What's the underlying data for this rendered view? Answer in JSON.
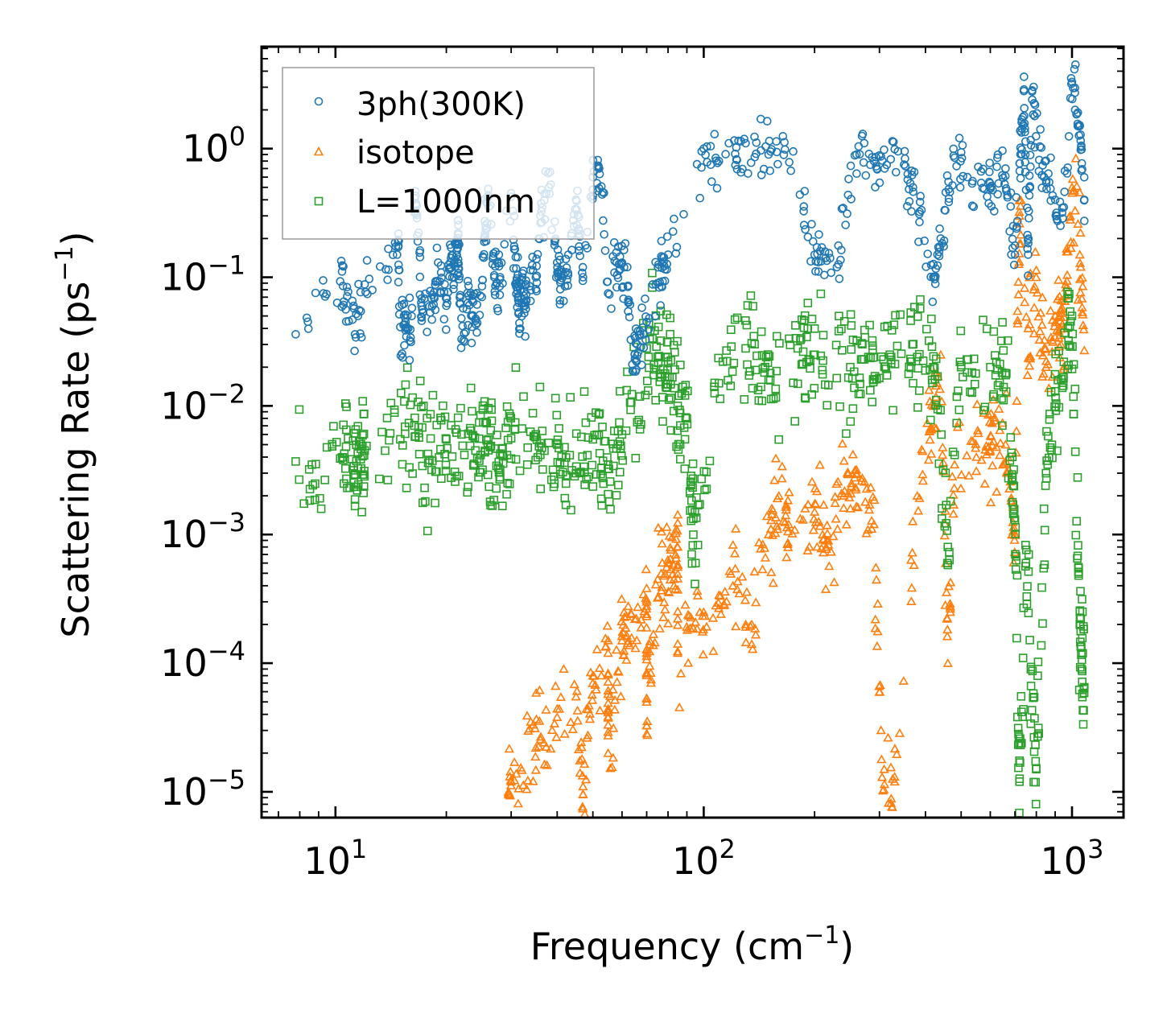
{
  "chart_data": {
    "type": "scatter",
    "title": "",
    "xlabel": "Frequency (cm",
    "xlabel_sup": "−1",
    "xlabel_close": ")",
    "ylabel": "Scattering Rate (ps",
    "ylabel_sup": "−1",
    "ylabel_close": ")",
    "xscale": "log",
    "yscale": "log",
    "xlim": [
      6.3,
      1380
    ],
    "ylim": [
      6.3e-06,
      6.2
    ],
    "legend_position": "top-left",
    "x_ticks": [
      {
        "base": "10",
        "exp": "1",
        "value": 10
      },
      {
        "base": "10",
        "exp": "2",
        "value": 100
      },
      {
        "base": "10",
        "exp": "3",
        "value": 1000
      }
    ],
    "y_ticks": [
      {
        "base": "10",
        "exp": "0",
        "value": 1
      },
      {
        "base": "10",
        "exp": "−1",
        "value": 0.1
      },
      {
        "base": "10",
        "exp": "−2",
        "value": 0.01
      },
      {
        "base": "10",
        "exp": "−3",
        "value": 0.001
      },
      {
        "base": "10",
        "exp": "−4",
        "value": 0.0001
      },
      {
        "base": "10",
        "exp": "−5",
        "value": 1e-05
      }
    ],
    "series": [
      {
        "name": "3ph(300K)",
        "color": "#1f77b4",
        "marker": "circle",
        "points": [
          [
            7.8,
            0.036
          ],
          [
            10.3,
            0.093
          ],
          [
            11.3,
            0.036
          ],
          [
            12.0,
            0.088
          ],
          [
            14.8,
            0.19
          ],
          [
            15.0,
            0.041
          ],
          [
            15.5,
            0.045
          ],
          [
            16.0,
            0.034
          ],
          [
            16.5,
            0.43
          ],
          [
            17.2,
            0.056
          ],
          [
            18.5,
            0.07
          ],
          [
            19.0,
            0.13
          ],
          [
            20.0,
            0.06
          ],
          [
            20.5,
            0.13
          ],
          [
            21.0,
            0.1
          ],
          [
            21.5,
            0.19
          ],
          [
            22.0,
            0.033
          ],
          [
            23.0,
            0.072
          ],
          [
            24.0,
            0.046
          ],
          [
            25.0,
            0.085
          ],
          [
            25.5,
            0.22
          ],
          [
            26.0,
            0.42
          ],
          [
            27.0,
            0.1
          ],
          [
            28.0,
            0.1
          ],
          [
            30.0,
            0.45
          ],
          [
            31.0,
            0.09
          ],
          [
            32.0,
            0.068
          ],
          [
            33.0,
            0.066
          ],
          [
            35.0,
            0.1
          ],
          [
            36.0,
            0.3
          ],
          [
            38.0,
            0.5
          ],
          [
            40.0,
            0.13
          ],
          [
            42.0,
            0.085
          ],
          [
            45.0,
            0.4
          ],
          [
            47.0,
            0.1
          ],
          [
            50.0,
            0.6
          ],
          [
            52.0,
            0.7
          ],
          [
            55.0,
            0.075
          ],
          [
            58.0,
            0.13
          ],
          [
            62.0,
            0.12
          ],
          [
            64.0,
            0.021
          ],
          [
            66.0,
            0.03
          ],
          [
            70.0,
            0.045
          ],
          [
            75.0,
            0.09
          ],
          [
            80.0,
            0.15
          ],
          [
            100.0,
            1.0
          ],
          [
            110.0,
            0.8
          ],
          [
            130.0,
            1.1
          ],
          [
            150.0,
            0.9
          ],
          [
            175.0,
            0.95
          ],
          [
            200.0,
            0.15
          ],
          [
            230.0,
            0.12
          ],
          [
            260.0,
            0.9
          ],
          [
            290.0,
            0.8
          ],
          [
            310.0,
            0.7
          ],
          [
            350.0,
            0.75
          ],
          [
            370.0,
            0.5
          ],
          [
            420.0,
            0.1
          ],
          [
            440.0,
            0.2
          ],
          [
            480.0,
            0.85
          ],
          [
            520.0,
            0.6
          ],
          [
            600.0,
            0.5
          ],
          [
            660.0,
            0.7
          ],
          [
            700.0,
            0.15
          ],
          [
            730.0,
            1.6
          ],
          [
            740.0,
            2.8
          ],
          [
            760.0,
            0.15
          ],
          [
            780.0,
            2.4
          ],
          [
            840.0,
            0.6
          ],
          [
            900.0,
            0.4
          ],
          [
            950.0,
            0.35
          ],
          [
            1000.0,
            3.3
          ],
          [
            1050.0,
            1.5
          ],
          [
            1080.0,
            0.4
          ]
        ]
      },
      {
        "name": "isotope",
        "color": "#ff7f0e",
        "marker": "triangle",
        "points": [
          [
            29.5,
            1e-05
          ],
          [
            30.0,
            1.2e-05
          ],
          [
            35.0,
            2.2e-05
          ],
          [
            40.0,
            3.8e-05
          ],
          [
            45.0,
            5.5e-05
          ],
          [
            50.0,
            8e-05
          ],
          [
            55.0,
            0.00012
          ],
          [
            60.0,
            0.00015
          ],
          [
            65.0,
            0.00022
          ],
          [
            70.0,
            0.0003
          ],
          [
            75.0,
            0.00045
          ],
          [
            80.0,
            0.0006
          ],
          [
            85.0,
            0.0008
          ],
          [
            47.0,
            1.1e-05
          ],
          [
            55.0,
            2e-05
          ],
          [
            70.0,
            5e-05
          ],
          [
            85.0,
            0.00012
          ],
          [
            100.0,
            0.00025
          ],
          [
            120.0,
            0.0004
          ],
          [
            135.0,
            0.0002
          ],
          [
            150.0,
            0.001
          ],
          [
            160.0,
            0.002
          ],
          [
            170.0,
            0.0012
          ],
          [
            200.0,
            0.0015
          ],
          [
            215.0,
            0.0008
          ],
          [
            240.0,
            0.002
          ],
          [
            260.0,
            0.003
          ],
          [
            290.0,
            0.0012
          ],
          [
            305.0,
            1.3e-05
          ],
          [
            330.0,
            1.2e-05
          ],
          [
            380.0,
            0.002
          ],
          [
            420.0,
            0.01
          ],
          [
            440.0,
            0.025
          ],
          [
            460.0,
            0.0001
          ],
          [
            480.0,
            0.0035
          ],
          [
            550.0,
            0.004
          ],
          [
            600.0,
            0.0045
          ],
          [
            660.0,
            0.005
          ],
          [
            700.0,
            0.001
          ],
          [
            720.0,
            0.3
          ],
          [
            760.0,
            0.04
          ],
          [
            800.0,
            0.1
          ],
          [
            850.0,
            0.02
          ],
          [
            900.0,
            0.05
          ],
          [
            950.0,
            0.04
          ],
          [
            1000.0,
            0.5
          ],
          [
            1050.0,
            0.15
          ],
          [
            1080.0,
            0.027
          ]
        ]
      },
      {
        "name": "L=1000nm",
        "color": "#2ca02c",
        "marker": "square",
        "points": [
          [
            7.8,
            0.0037
          ],
          [
            10.5,
            0.0038
          ],
          [
            11.5,
            0.0043
          ],
          [
            12.0,
            0.0045
          ],
          [
            15.0,
            0.0055
          ],
          [
            16.5,
            0.0058
          ],
          [
            18.0,
            0.0038
          ],
          [
            20.0,
            0.0055
          ],
          [
            22.0,
            0.006
          ],
          [
            24.0,
            0.0045
          ],
          [
            26.0,
            0.0055
          ],
          [
            28.0,
            0.0032
          ],
          [
            30.0,
            0.0056
          ],
          [
            35.0,
            0.006
          ],
          [
            40.0,
            0.005
          ],
          [
            45.0,
            0.003
          ],
          [
            50.0,
            0.0055
          ],
          [
            55.0,
            0.0035
          ],
          [
            60.0,
            0.006
          ],
          [
            70.0,
            0.028
          ],
          [
            75.0,
            0.024
          ],
          [
            80.0,
            0.022
          ],
          [
            85.0,
            0.01
          ],
          [
            90.0,
            0.008
          ],
          [
            95.0,
            0.0006
          ],
          [
            110.0,
            0.015
          ],
          [
            130.0,
            0.028
          ],
          [
            150.0,
            0.016
          ],
          [
            180.0,
            0.028
          ],
          [
            200.0,
            0.025
          ],
          [
            250.0,
            0.02
          ],
          [
            280.0,
            0.024
          ],
          [
            320.0,
            0.025
          ],
          [
            380.0,
            0.024
          ],
          [
            420.0,
            0.02
          ],
          [
            460.0,
            0.0008
          ],
          [
            500.0,
            0.02
          ],
          [
            600.0,
            0.02
          ],
          [
            660.0,
            0.018
          ],
          [
            700.0,
            0.0013
          ],
          [
            720.0,
            1.2e-05
          ],
          [
            750.0,
            0.0006
          ],
          [
            800.0,
            1.5e-05
          ],
          [
            850.0,
            0.003
          ],
          [
            900.0,
            0.013
          ],
          [
            950.0,
            0.022
          ],
          [
            1000.0,
            0.05
          ],
          [
            1050.0,
            0.0002
          ],
          [
            1080.0,
            6.5e-05
          ]
        ]
      }
    ]
  }
}
